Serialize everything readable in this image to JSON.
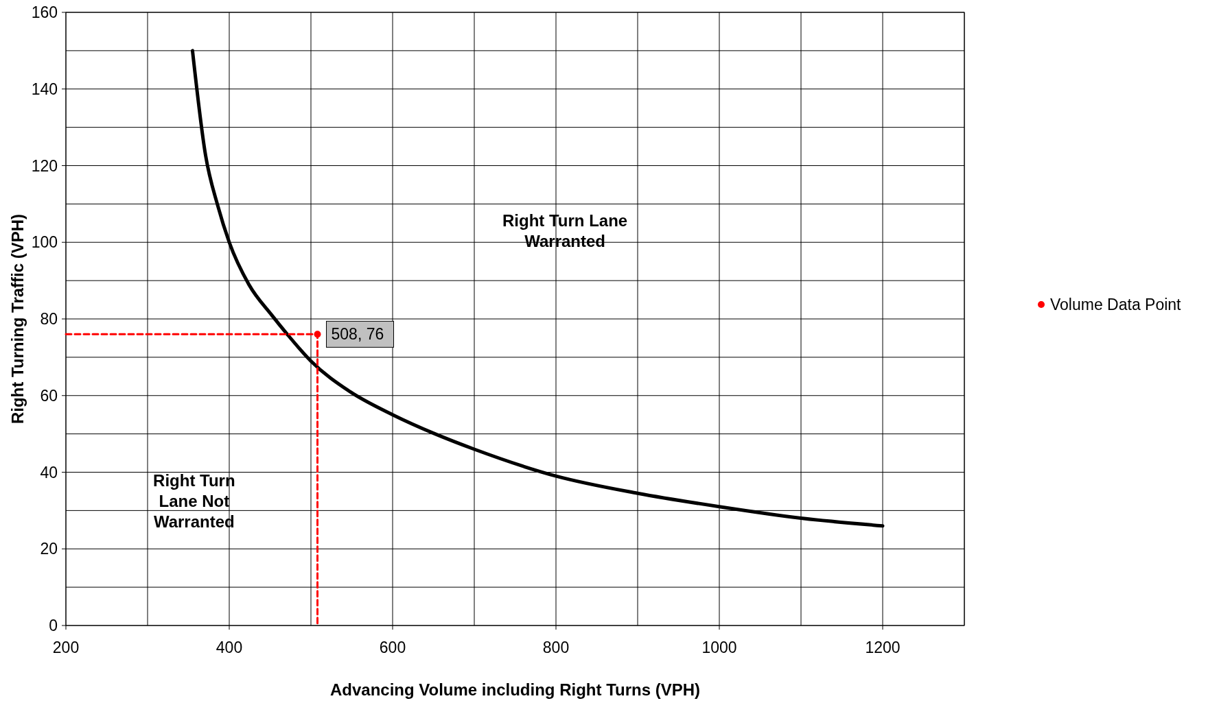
{
  "chart_data": {
    "type": "line",
    "xlabel": "Advancing Volume including Right Turns (VPH)",
    "ylabel": "Right Turning Traffic (VPH)",
    "xlim": [
      200,
      1300
    ],
    "xticks": [
      200,
      400,
      600,
      800,
      1000,
      1200
    ],
    "ylim": [
      0,
      160
    ],
    "yticks": [
      0,
      20,
      40,
      60,
      80,
      100,
      120,
      140,
      160
    ],
    "grid": true,
    "legend": "right",
    "annotations": [
      "Right Turn Lane\nWarranted",
      "Right Turn\nLane Not\nWarranted"
    ],
    "series": [
      {
        "color": "#000000",
        "marker": "none",
        "line_style": "solid",
        "x": [
          355,
          371,
          386,
          400,
          424,
          452,
          471,
          500,
          548,
          600,
          652,
          700,
          800,
          900,
          1000,
          1100,
          1200
        ],
        "values": [
          150,
          122.7,
          109.5,
          100,
          89,
          81,
          76,
          69,
          61,
          55,
          50,
          46,
          39,
          34.5,
          31,
          28,
          26
        ]
      },
      {
        "color": "#ff0000",
        "marker": "none",
        "line_style": "dashed",
        "x": [
          200,
          508,
          508
        ],
        "values": [
          76,
          76,
          0
        ]
      },
      {
        "type": "scatter",
        "name": "Volume Data Point",
        "color": "#ff0000",
        "marker": "circle",
        "x": [
          508
        ],
        "values": [
          76
        ],
        "value_labels": [
          "508, 76"
        ]
      }
    ]
  }
}
